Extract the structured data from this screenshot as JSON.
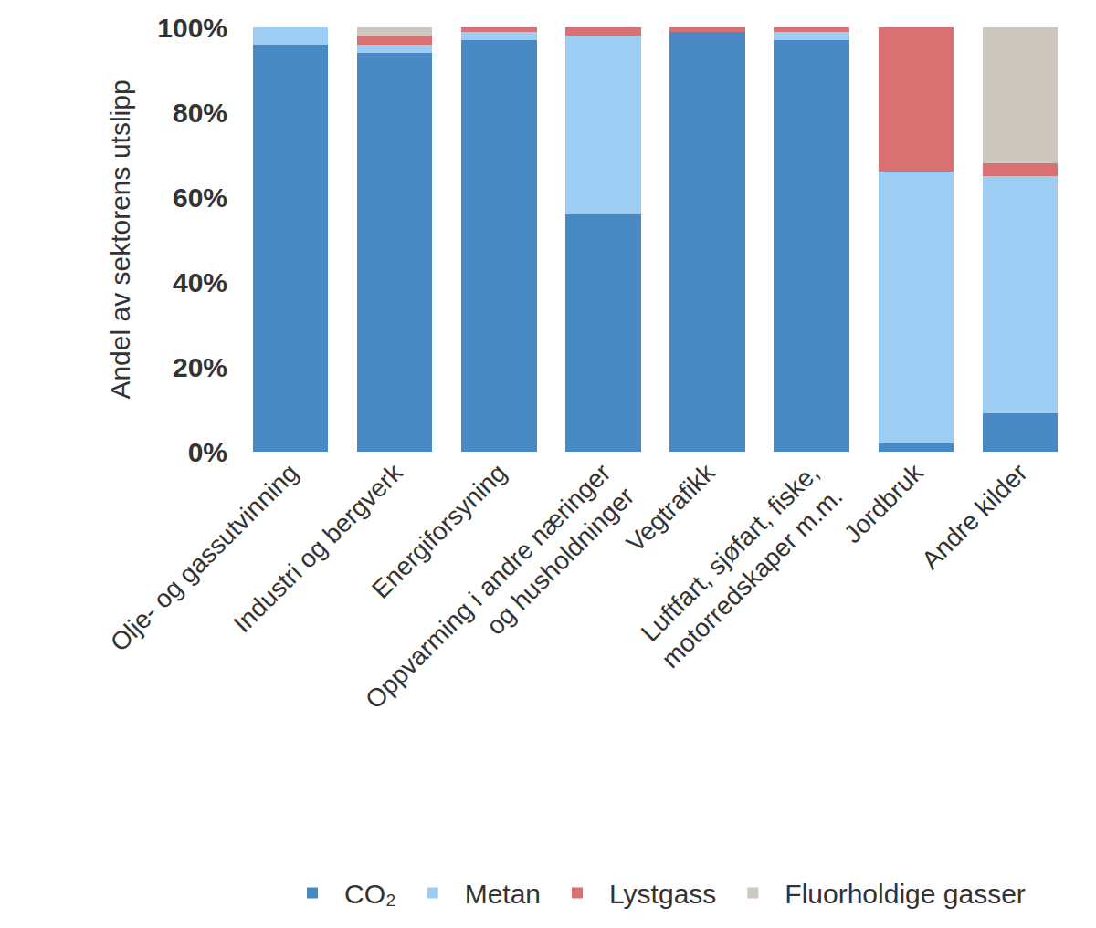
{
  "chart_data": {
    "type": "bar",
    "stacked": true,
    "y_label": "Andel av sektorens utslipp",
    "categories": [
      "Olje- og gassutvinning",
      "Industri og bergverk",
      "Energiforsyning",
      "Oppvarming i andre næringer\nog husholdninger",
      "Vegtrafikk",
      "Luftfart, sjøfart, fiske,\nmotorredskaper m.m.",
      "Jordbruk",
      "Andre kilder"
    ],
    "series": [
      {
        "name": "CO₂",
        "color": "#4a8ac4",
        "values": [
          96,
          94,
          97,
          56,
          99,
          97,
          2,
          9
        ]
      },
      {
        "name": "Metan",
        "color": "#9dcdf2",
        "values": [
          4,
          2,
          2,
          42,
          0,
          2,
          64,
          56
        ]
      },
      {
        "name": "Lystgass",
        "color": "#d97173",
        "values": [
          0,
          2,
          1,
          2,
          1,
          1,
          34,
          3
        ]
      },
      {
        "name": "Fluorholdige gasser",
        "color": "#ccc8bf",
        "values": [
          0,
          2,
          0,
          0,
          0,
          0,
          0,
          32
        ]
      }
    ],
    "ylim": [
      0,
      100
    ],
    "yticks": [
      {
        "value": 0,
        "label": "0%"
      },
      {
        "value": 20,
        "label": "20%"
      },
      {
        "value": 40,
        "label": "40%"
      },
      {
        "value": 60,
        "label": "60%"
      },
      {
        "value": 80,
        "label": "80%"
      },
      {
        "value": 100,
        "label": "100%"
      }
    ],
    "grid": false,
    "legend": "bottom"
  }
}
